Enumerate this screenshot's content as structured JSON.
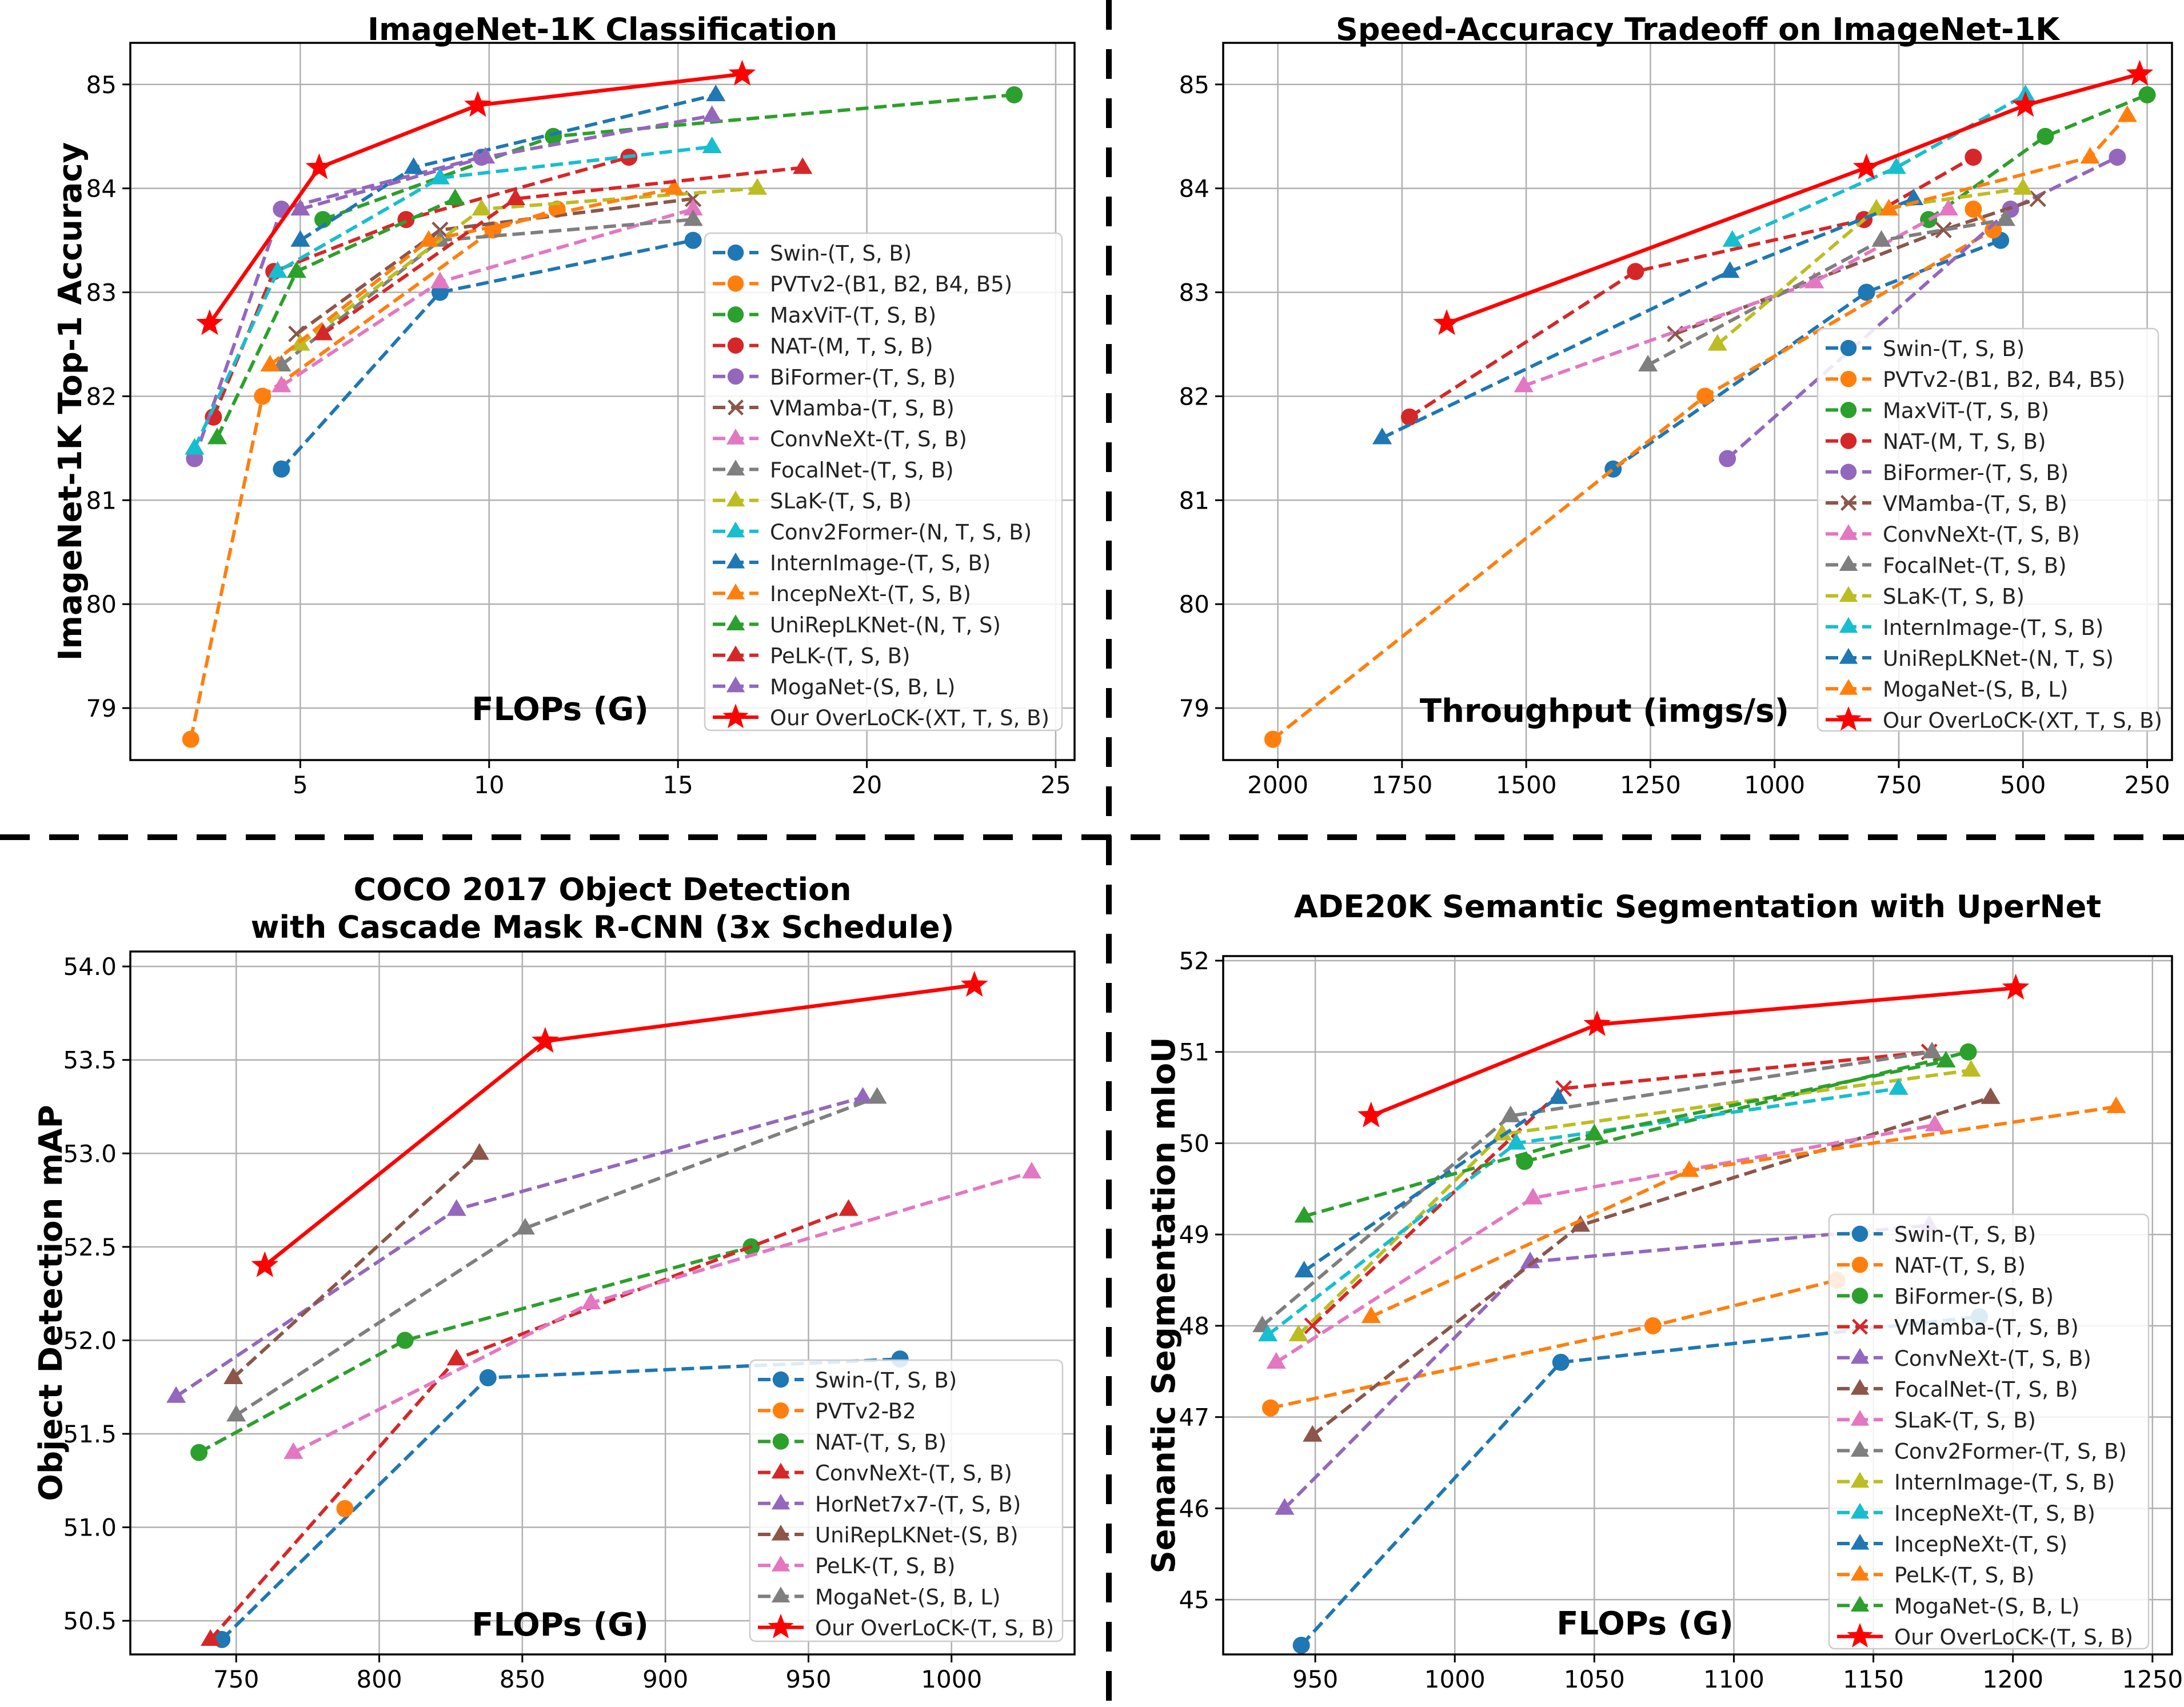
{
  "figure": {
    "title": "",
    "colors": {
      "blue": "#1f77b4",
      "orange": "#ff7f0e",
      "green": "#2ca02c",
      "red": "#d62728",
      "purple": "#9467bd",
      "brown": "#8c564b",
      "pink": "#e377c2",
      "gray": "#7f7f7f",
      "olive": "#bcbd22",
      "cyan": "#17becf",
      "ours": "#ff0000"
    }
  },
  "chart_data": [
    {
      "type": "line",
      "title": "ImageNet-1K Classification",
      "xlabel": "FLOPs (G)",
      "ylabel": "ImageNet-1K Top-1 Accuracy",
      "xlim": [
        0.5,
        25.5
      ],
      "ylim": [
        78.5,
        85.4
      ],
      "xticks": [
        5,
        10,
        15,
        20,
        25
      ],
      "yticks": [
        79,
        80,
        81,
        82,
        83,
        84,
        85
      ],
      "grid": true,
      "legend": "lower-right",
      "series": [
        {
          "name": "Swin-(T, S, B)",
          "color": "blue",
          "marker": "circle",
          "dashed": true,
          "x": [
            4.5,
            8.7,
            15.4
          ],
          "y": [
            81.3,
            83.0,
            83.5
          ]
        },
        {
          "name": "PVTv2-(B1, B2, B4, B5)",
          "color": "orange",
          "marker": "circle",
          "dashed": true,
          "x": [
            2.1,
            4.0,
            10.1,
            11.8
          ],
          "y": [
            78.7,
            82.0,
            83.6,
            83.8
          ]
        },
        {
          "name": "MaxViT-(T, S, B)",
          "color": "green",
          "marker": "circle",
          "dashed": true,
          "x": [
            5.6,
            11.7,
            23.9
          ],
          "y": [
            83.7,
            84.5,
            84.9
          ]
        },
        {
          "name": "NAT-(M, T, S, B)",
          "color": "red",
          "marker": "circle",
          "dashed": true,
          "x": [
            2.7,
            4.3,
            7.8,
            13.7
          ],
          "y": [
            81.8,
            83.2,
            83.7,
            84.3
          ]
        },
        {
          "name": "BiFormer-(T, S, B)",
          "color": "purple",
          "marker": "circle",
          "dashed": true,
          "x": [
            2.2,
            4.5,
            9.8
          ],
          "y": [
            81.4,
            83.8,
            84.3
          ]
        },
        {
          "name": "VMamba-(T, S, B)",
          "color": "brown",
          "marker": "x",
          "dashed": true,
          "x": [
            4.9,
            8.7,
            15.4
          ],
          "y": [
            82.6,
            83.6,
            83.9
          ]
        },
        {
          "name": "ConvNeXt-(T, S, B)",
          "color": "pink",
          "marker": "triangle",
          "dashed": true,
          "x": [
            4.5,
            8.7,
            15.4
          ],
          "y": [
            82.1,
            83.1,
            83.8
          ]
        },
        {
          "name": "FocalNet-(T, S, B)",
          "color": "gray",
          "marker": "triangle",
          "dashed": true,
          "x": [
            4.5,
            8.7,
            15.4
          ],
          "y": [
            82.3,
            83.5,
            83.7
          ]
        },
        {
          "name": "SLaK-(T, S, B)",
          "color": "olive",
          "marker": "triangle",
          "dashed": true,
          "x": [
            5.0,
            9.8,
            17.1
          ],
          "y": [
            82.5,
            83.8,
            84.0
          ]
        },
        {
          "name": "Conv2Former-(N, T, S, B)",
          "color": "cyan",
          "marker": "triangle",
          "dashed": true,
          "x": [
            2.2,
            4.4,
            8.7,
            15.9
          ],
          "y": [
            81.5,
            83.2,
            84.1,
            84.4
          ]
        },
        {
          "name": "InternImage-(T, S, B)",
          "color": "blue",
          "marker": "triangle",
          "dashed": true,
          "x": [
            5.0,
            8.0,
            16.0
          ],
          "y": [
            83.5,
            84.2,
            84.9
          ]
        },
        {
          "name": "IncepNeXt-(T, S, B)",
          "color": "orange",
          "marker": "triangle",
          "dashed": true,
          "x": [
            4.2,
            8.4,
            14.9
          ],
          "y": [
            82.3,
            83.5,
            84.0
          ]
        },
        {
          "name": "UniRepLKNet-(N, T, S)",
          "color": "green",
          "marker": "triangle",
          "dashed": true,
          "x": [
            2.8,
            4.9,
            9.1
          ],
          "y": [
            81.6,
            83.2,
            83.9
          ]
        },
        {
          "name": "PeLK-(T, S, B)",
          "color": "red",
          "marker": "triangle",
          "dashed": true,
          "x": [
            5.6,
            10.7,
            18.3
          ],
          "y": [
            82.6,
            83.9,
            84.2
          ]
        },
        {
          "name": "MogaNet-(S, B, L)",
          "color": "purple",
          "marker": "triangle",
          "dashed": true,
          "x": [
            5.0,
            9.9,
            15.9
          ],
          "y": [
            83.8,
            84.3,
            84.7
          ]
        },
        {
          "name": "Our OverLoCK-(XT, T, S, B)",
          "color": "ours",
          "marker": "star",
          "dashed": false,
          "x": [
            2.6,
            5.5,
            9.7,
            16.7
          ],
          "y": [
            82.7,
            84.2,
            84.8,
            85.1
          ]
        }
      ]
    },
    {
      "type": "line",
      "title": "Speed-Accuracy Tradeoff on ImageNet-1K",
      "xlabel": "Throughput (imgs/s)",
      "ylabel": "",
      "xlim": [
        2110,
        200
      ],
      "ylim": [
        78.5,
        85.4
      ],
      "xticks": [
        2000,
        1750,
        1500,
        1250,
        1000,
        750,
        500,
        250
      ],
      "yticks": [
        79,
        80,
        81,
        82,
        83,
        84,
        85
      ],
      "grid": true,
      "legend": "lower-right",
      "series": [
        {
          "name": "Swin-(T, S, B)",
          "color": "blue",
          "marker": "circle",
          "dashed": true,
          "x": [
            1325,
            815,
            545
          ],
          "y": [
            81.3,
            83.0,
            83.5
          ]
        },
        {
          "name": "PVTv2-(B1, B2, B4, B5)",
          "color": "orange",
          "marker": "circle",
          "dashed": true,
          "x": [
            2010,
            1140,
            560,
            600
          ],
          "y": [
            78.7,
            82.0,
            83.6,
            83.8
          ]
        },
        {
          "name": "MaxViT-(T, S, B)",
          "color": "green",
          "marker": "circle",
          "dashed": true,
          "x": [
            690,
            455,
            250
          ],
          "y": [
            83.7,
            84.5,
            84.9
          ]
        },
        {
          "name": "NAT-(M, T, S, B)",
          "color": "red",
          "marker": "circle",
          "dashed": true,
          "x": [
            1735,
            1280,
            820,
            600
          ],
          "y": [
            81.8,
            83.2,
            83.7,
            84.3
          ]
        },
        {
          "name": "BiFormer-(T, S, B)",
          "color": "purple",
          "marker": "circle",
          "dashed": true,
          "x": [
            1095,
            525,
            310
          ],
          "y": [
            81.4,
            83.8,
            84.3
          ]
        },
        {
          "name": "VMamba-(T, S, B)",
          "color": "brown",
          "marker": "x",
          "dashed": true,
          "x": [
            1200,
            660,
            470
          ],
          "y": [
            82.6,
            83.6,
            83.9
          ]
        },
        {
          "name": "ConvNeXt-(T, S, B)",
          "color": "pink",
          "marker": "triangle",
          "dashed": true,
          "x": [
            1505,
            920,
            650
          ],
          "y": [
            82.1,
            83.1,
            83.8
          ]
        },
        {
          "name": "FocalNet-(T, S, B)",
          "color": "gray",
          "marker": "triangle",
          "dashed": true,
          "x": [
            1255,
            785,
            535
          ],
          "y": [
            82.3,
            83.5,
            83.7
          ]
        },
        {
          "name": "SLaK-(T, S, B)",
          "color": "olive",
          "marker": "triangle",
          "dashed": true,
          "x": [
            1115,
            795,
            500
          ],
          "y": [
            82.5,
            83.8,
            84.0
          ]
        },
        {
          "name": "InternImage-(T, S, B)",
          "color": "cyan",
          "marker": "triangle",
          "dashed": true,
          "x": [
            1085,
            755,
            495
          ],
          "y": [
            83.5,
            84.2,
            84.9
          ]
        },
        {
          "name": "UniRepLKNet-(N, T, S)",
          "color": "blue",
          "marker": "triangle",
          "dashed": true,
          "x": [
            1790,
            1090,
            720
          ],
          "y": [
            81.6,
            83.2,
            83.9
          ]
        },
        {
          "name": "MogaNet-(S, B, L)",
          "color": "orange",
          "marker": "triangle",
          "dashed": true,
          "x": [
            770,
            365,
            290
          ],
          "y": [
            83.8,
            84.3,
            84.7
          ]
        },
        {
          "name": "Our OverLoCK-(XT, T, S, B)",
          "color": "ours",
          "marker": "star",
          "dashed": false,
          "x": [
            1660,
            815,
            495,
            265
          ],
          "y": [
            82.7,
            84.2,
            84.8,
            85.1
          ]
        }
      ]
    },
    {
      "type": "line",
      "title": "COCO 2017 Object Detection\nwith Cascade Mask R-CNN (3x Schedule)",
      "xlabel": "FLOPs (G)",
      "ylabel": "Object Detection mAP",
      "xlim": [
        713,
        1043
      ],
      "ylim": [
        50.32,
        54.08
      ],
      "xticks": [
        750,
        800,
        850,
        900,
        950,
        1000
      ],
      "yticks": [
        50.5,
        51.0,
        51.5,
        52.0,
        52.5,
        53.0,
        53.5,
        54.0
      ],
      "grid": true,
      "legend": "lower-right",
      "series": [
        {
          "name": "Swin-(T, S, B)",
          "color": "blue",
          "marker": "circle",
          "dashed": true,
          "x": [
            745,
            838,
            982
          ],
          "y": [
            50.4,
            51.8,
            51.9
          ]
        },
        {
          "name": "PVTv2-B2",
          "color": "orange",
          "marker": "circle",
          "dashed": true,
          "x": [
            788
          ],
          "y": [
            51.1
          ]
        },
        {
          "name": "NAT-(T, S, B)",
          "color": "green",
          "marker": "circle",
          "dashed": true,
          "x": [
            737,
            809,
            930
          ],
          "y": [
            51.4,
            52.0,
            52.5
          ]
        },
        {
          "name": "ConvNeXt-(T, S, B)",
          "color": "red",
          "marker": "triangle",
          "dashed": true,
          "x": [
            741,
            827,
            964
          ],
          "y": [
            50.4,
            51.9,
            52.7
          ]
        },
        {
          "name": "HorNet7x7-(T, S, B)",
          "color": "purple",
          "marker": "triangle",
          "dashed": true,
          "x": [
            729,
            827,
            969
          ],
          "y": [
            51.7,
            52.7,
            53.3
          ]
        },
        {
          "name": "UniRepLKNet-(S, B)",
          "color": "brown",
          "marker": "triangle",
          "dashed": true,
          "x": [
            749,
            835
          ],
          "y": [
            51.8,
            53.0
          ]
        },
        {
          "name": "PeLK-(T, S, B)",
          "color": "pink",
          "marker": "triangle",
          "dashed": true,
          "x": [
            770,
            874,
            1028
          ],
          "y": [
            51.4,
            52.2,
            52.9
          ]
        },
        {
          "name": "MogaNet-(S, B, L)",
          "color": "gray",
          "marker": "triangle",
          "dashed": true,
          "x": [
            750,
            851,
            974
          ],
          "y": [
            51.6,
            52.6,
            53.3
          ]
        },
        {
          "name": "Our OverLoCK-(T, S, B)",
          "color": "ours",
          "marker": "star",
          "dashed": false,
          "x": [
            760,
            858,
            1008
          ],
          "y": [
            52.4,
            53.6,
            53.9
          ]
        }
      ]
    },
    {
      "type": "line",
      "title": "ADE20K Semantic Segmentation with UperNet",
      "xlabel": "FLOPs (G)",
      "ylabel": "Semantic Segmentation mIoU",
      "xlim": [
        917,
        1257
      ],
      "ylim": [
        44.4,
        52.05
      ],
      "xticks": [
        950,
        1000,
        1050,
        1100,
        1150,
        1200,
        1250
      ],
      "yticks": [
        45,
        46,
        47,
        48,
        49,
        50,
        51,
        52
      ],
      "grid": true,
      "legend": "lower-right",
      "series": [
        {
          "name": "Swin-(T, S, B)",
          "color": "blue",
          "marker": "circle",
          "dashed": true,
          "x": [
            945,
            1038,
            1188
          ],
          "y": [
            44.5,
            47.6,
            48.1
          ]
        },
        {
          "name": "NAT-(T, S, B)",
          "color": "orange",
          "marker": "circle",
          "dashed": true,
          "x": [
            934,
            1071,
            1137
          ],
          "y": [
            47.1,
            48.0,
            48.5
          ]
        },
        {
          "name": "BiFormer-(S, B)",
          "color": "green",
          "marker": "circle",
          "dashed": true,
          "x": [
            1025,
            1184
          ],
          "y": [
            49.8,
            51.0
          ]
        },
        {
          "name": "VMamba-(T, S, B)",
          "color": "red",
          "marker": "x",
          "dashed": true,
          "x": [
            949,
            1039,
            1170
          ],
          "y": [
            48.0,
            50.6,
            51.0
          ]
        },
        {
          "name": "ConvNeXt-(T, S, B)",
          "color": "purple",
          "marker": "triangle",
          "dashed": true,
          "x": [
            939,
            1027,
            1170
          ],
          "y": [
            46.0,
            48.7,
            49.1
          ]
        },
        {
          "name": "FocalNet-(T, S, B)",
          "color": "brown",
          "marker": "triangle",
          "dashed": true,
          "x": [
            949,
            1045,
            1192
          ],
          "y": [
            46.8,
            49.1,
            50.5
          ]
        },
        {
          "name": "SLaK-(T, S, B)",
          "color": "pink",
          "marker": "triangle",
          "dashed": true,
          "x": [
            936,
            1028,
            1172
          ],
          "y": [
            47.6,
            49.4,
            50.2
          ]
        },
        {
          "name": "Conv2Former-(T, S, B)",
          "color": "gray",
          "marker": "triangle",
          "dashed": true,
          "x": [
            931,
            1020,
            1171
          ],
          "y": [
            48.0,
            50.3,
            51.0
          ]
        },
        {
          "name": "InternImage-(T, S, B)",
          "color": "olive",
          "marker": "triangle",
          "dashed": true,
          "x": [
            944,
            1017,
            1185
          ],
          "y": [
            47.9,
            50.1,
            50.8
          ]
        },
        {
          "name": "IncepNeXt-(T, S, B)",
          "color": "cyan",
          "marker": "triangle",
          "dashed": true,
          "x": [
            933,
            1022,
            1159
          ],
          "y": [
            47.9,
            50.0,
            50.6
          ]
        },
        {
          "name": "IncepNeXt-(T, S)",
          "color": "blue",
          "marker": "triangle",
          "dashed": true,
          "x": [
            946,
            1037
          ],
          "y": [
            48.6,
            50.5
          ]
        },
        {
          "name": "PeLK-(T, S, B)",
          "color": "orange",
          "marker": "triangle",
          "dashed": true,
          "x": [
            970,
            1084,
            1237
          ],
          "y": [
            48.1,
            49.7,
            50.4
          ]
        },
        {
          "name": "MogaNet-(S, B, L)",
          "color": "green",
          "marker": "triangle",
          "dashed": true,
          "x": [
            946,
            1050,
            1176
          ],
          "y": [
            49.2,
            50.1,
            50.9
          ]
        },
        {
          "name": "Our OverLoCK-(T, S, B)",
          "color": "ours",
          "marker": "star",
          "dashed": false,
          "x": [
            970,
            1051,
            1201
          ],
          "y": [
            50.3,
            51.3,
            51.7
          ]
        }
      ]
    }
  ]
}
